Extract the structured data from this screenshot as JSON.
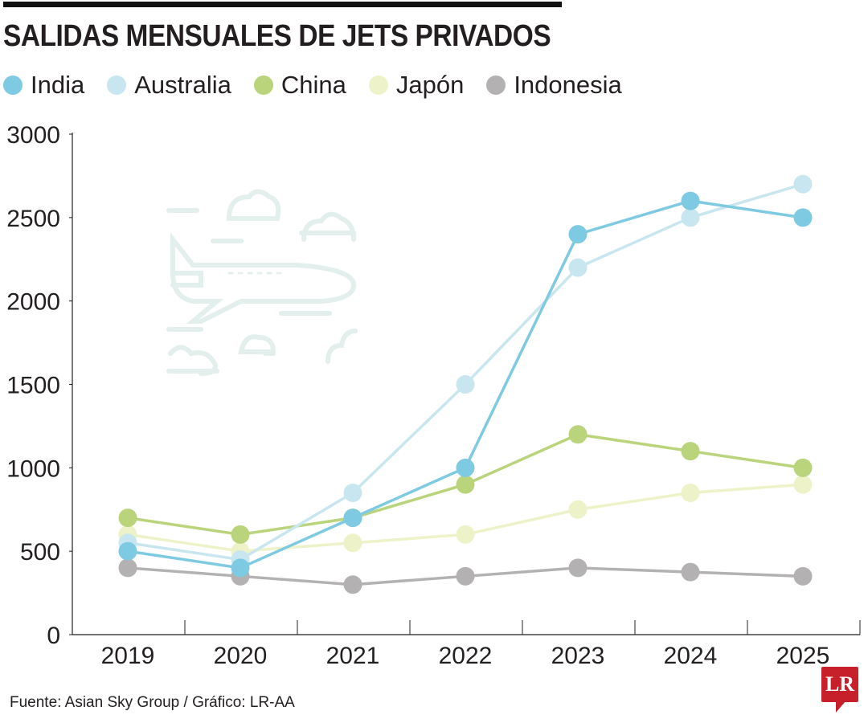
{
  "chart_data": {
    "type": "line",
    "title": "SALIDAS MENSUALES DE JETS PRIVADOS",
    "x": [
      "2019",
      "2020",
      "2021",
      "2022",
      "2023",
      "2024",
      "2025"
    ],
    "ylim": [
      0,
      3000
    ],
    "yticks": [
      "0",
      "500",
      "1000",
      "1500",
      "2000",
      "2500",
      "3000"
    ],
    "grid": false,
    "legend": "top",
    "series": [
      {
        "name": "India",
        "color": "#7ecae2",
        "values": [
          500,
          400,
          700,
          1000,
          2400,
          2600,
          2500
        ]
      },
      {
        "name": "Australia",
        "color": "#c8e6f0",
        "values": [
          550,
          450,
          850,
          1500,
          2200,
          2500,
          2700
        ]
      },
      {
        "name": "China",
        "color": "#b9d47a",
        "values": [
          700,
          600,
          700,
          900,
          1200,
          1100,
          1000
        ]
      },
      {
        "name": "Japón",
        "color": "#eef2c8",
        "values": [
          600,
          500,
          550,
          600,
          750,
          850,
          900
        ]
      },
      {
        "name": "Indonesia",
        "color": "#b3b1b2",
        "values": [
          400,
          350,
          300,
          350,
          400,
          375,
          350
        ]
      }
    ],
    "source": "Fuente: Asian Sky Group / Gráfico: LR-AA"
  },
  "logo": "LR"
}
